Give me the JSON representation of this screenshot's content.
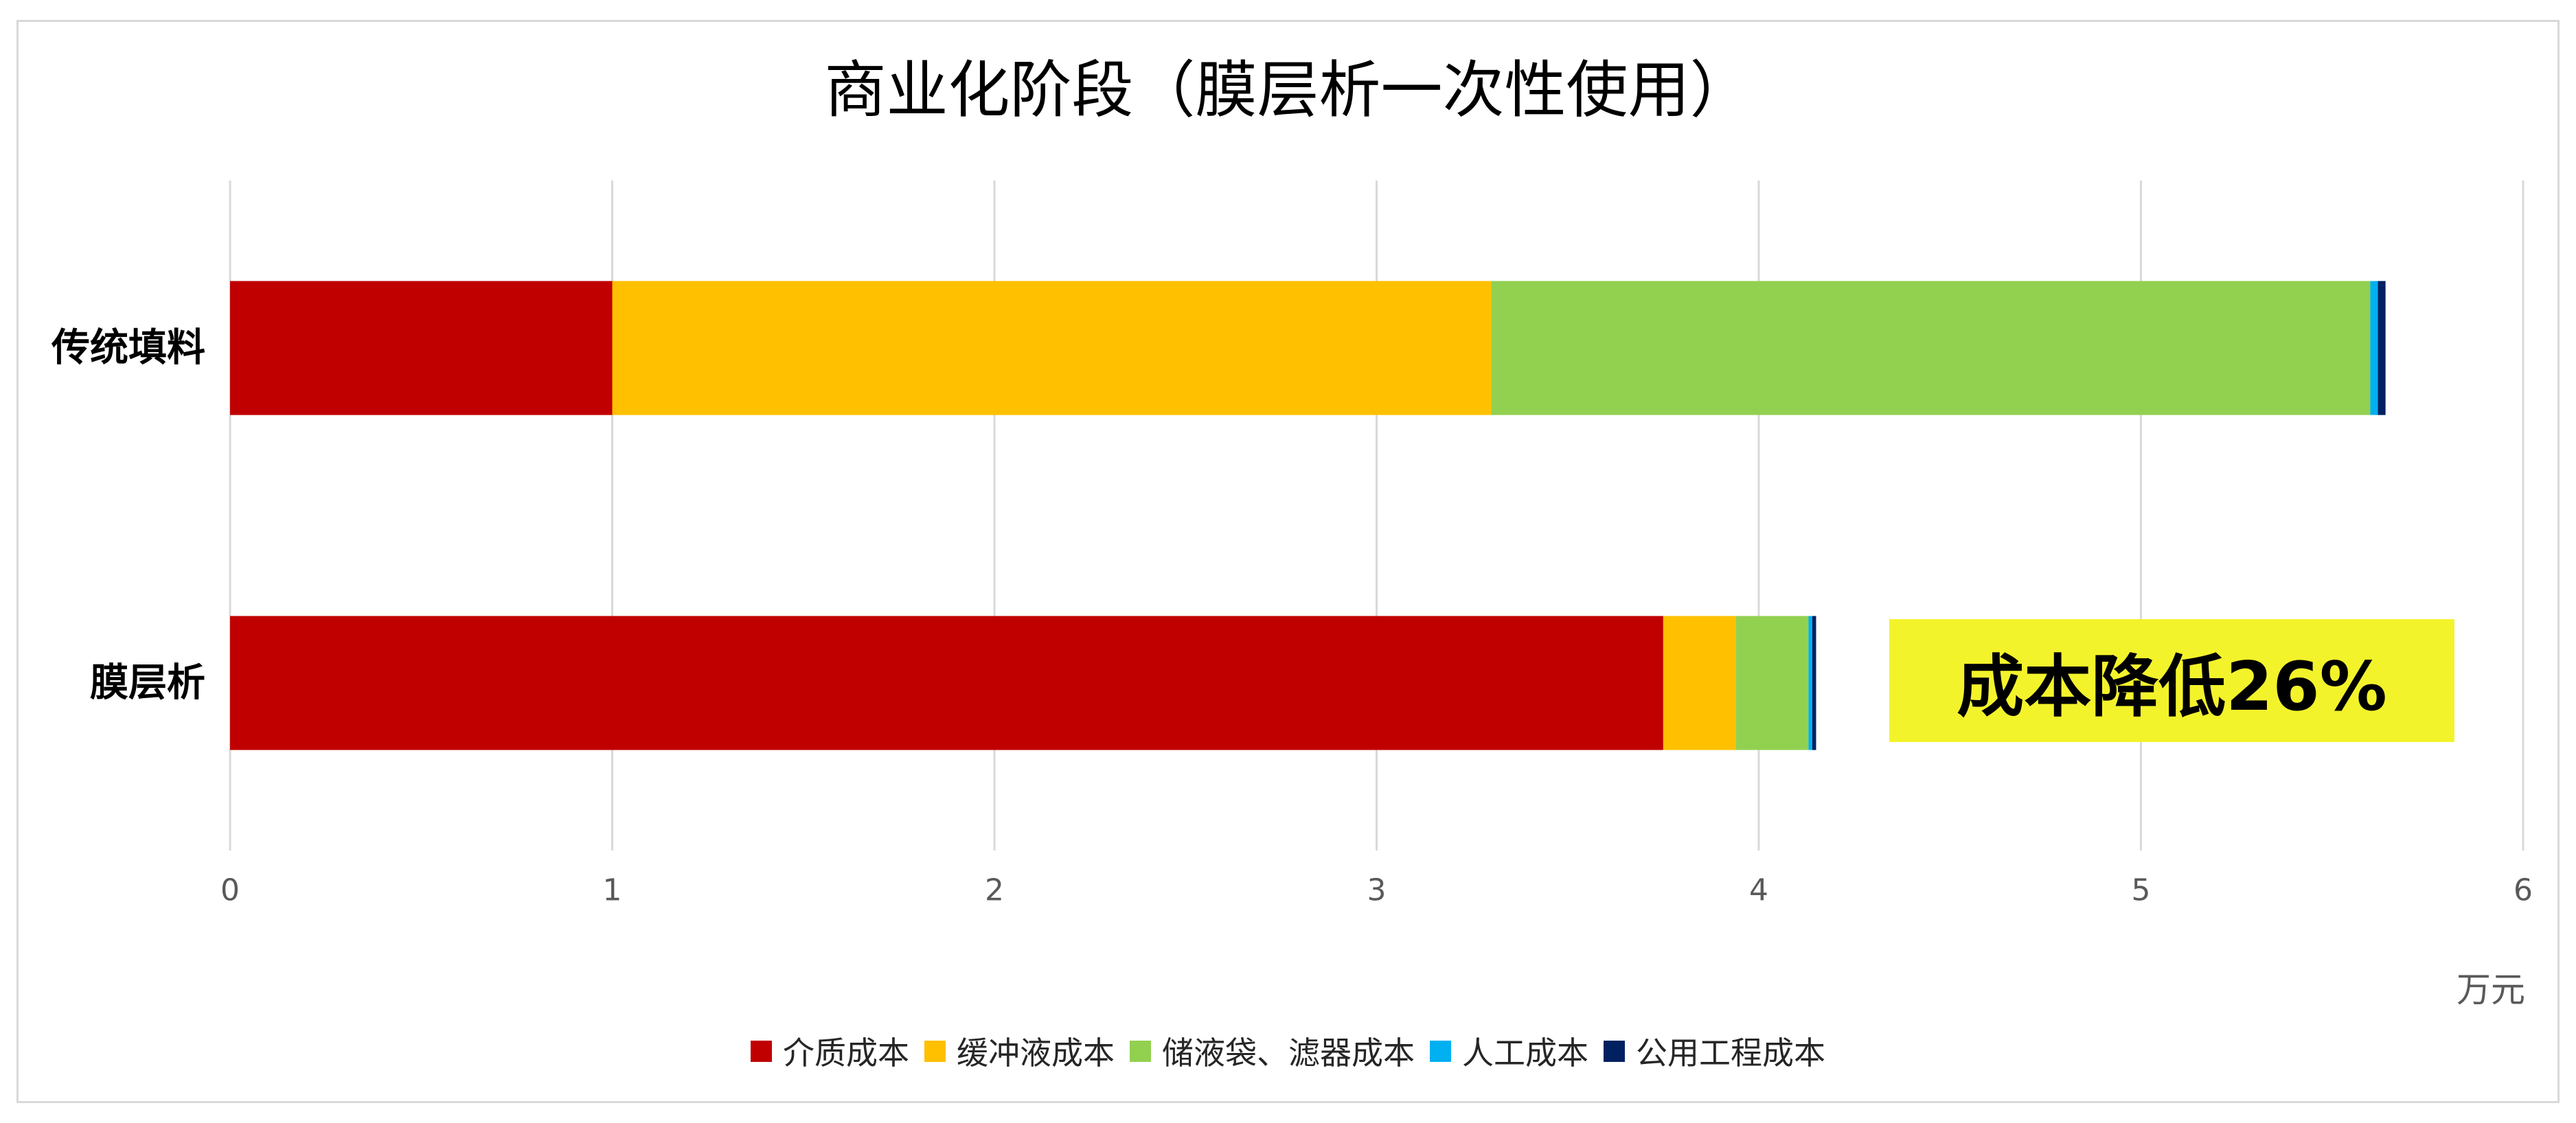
{
  "chart_data": {
    "type": "bar",
    "orientation": "horizontal",
    "stacked": true,
    "title": "商业化阶段（膜层析一次性使用）",
    "categories": [
      "传统填料",
      "膜层析"
    ],
    "series": [
      {
        "name": "介质成本",
        "color": "#C00000",
        "values": [
          1.0,
          3.75
        ]
      },
      {
        "name": "缓冲液成本",
        "color": "#FFC000",
        "values": [
          2.3,
          0.19
        ]
      },
      {
        "name": "储液袋、滤器成本",
        "color": "#92D050",
        "values": [
          2.3,
          0.19
        ]
      },
      {
        "name": "人工成本",
        "color": "#00B0F0",
        "values": [
          0.02,
          0.01
        ]
      },
      {
        "name": "公用工程成本",
        "color": "#002060",
        "values": [
          0.02,
          0.01
        ]
      }
    ],
    "xlim": [
      0,
      6
    ],
    "xticks": [
      0,
      1,
      2,
      3,
      4,
      5,
      6
    ],
    "xlabel": "万元",
    "grid": true,
    "legend_position": "bottom",
    "annotation": {
      "text": "成本降低26%",
      "background": "#F3F32C"
    }
  }
}
